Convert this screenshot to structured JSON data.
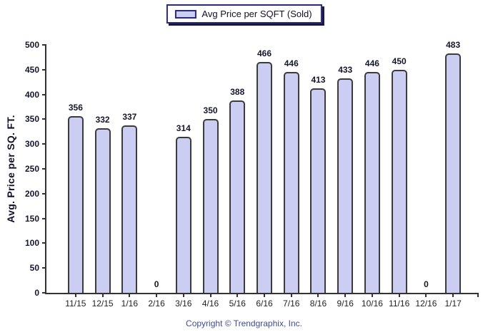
{
  "legend": {
    "label": "Avg Price per SQFT (Sold)"
  },
  "y_axis": {
    "title": "Avg. Price per SQ. FT."
  },
  "footer": {
    "copyright": "Copyright © Trendgraphix, Inc."
  },
  "colors": {
    "bar_fill": "#cbcdf3",
    "bar_border": "#3b3b3b",
    "axis": "#333333",
    "legend_border": "#2a2a7c",
    "value_label": "#15152d",
    "copyright_text": "#3e4c96"
  },
  "chart_data": {
    "type": "bar",
    "categories": [
      "11/15",
      "12/15",
      "1/16",
      "2/16",
      "3/16",
      "4/16",
      "5/16",
      "6/16",
      "7/16",
      "8/16",
      "9/16",
      "10/16",
      "11/16",
      "12/16",
      "1/17"
    ],
    "values": [
      356,
      332,
      337,
      0,
      314,
      350,
      388,
      466,
      446,
      413,
      433,
      446,
      450,
      0,
      483
    ],
    "title": "",
    "xlabel": "",
    "ylabel": "Avg. Price per SQ. FT.",
    "ylim": [
      0,
      500
    ],
    "ytick_step": 50,
    "grid": false,
    "legend_entries": [
      "Avg Price per SQFT (Sold)"
    ],
    "legend_position": "top-center",
    "bar_value_labels": true,
    "footer": "Copyright © Trendgraphix, Inc."
  }
}
